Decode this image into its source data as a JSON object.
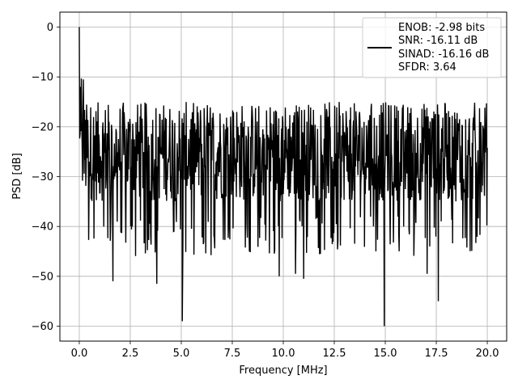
{
  "chart_data": {
    "type": "line",
    "title": "",
    "xlabel": "Frequency [MHz]",
    "ylabel": "PSD [dB]",
    "xlim": [
      -0.95,
      20.95
    ],
    "ylim": [
      -63,
      3
    ],
    "x_ticks": [
      0.0,
      2.5,
      5.0,
      7.5,
      10.0,
      12.5,
      15.0,
      17.5,
      20.0
    ],
    "x_tick_labels": [
      "0.0",
      "2.5",
      "5.0",
      "7.5",
      "10.0",
      "12.5",
      "15.0",
      "17.5",
      "20.0"
    ],
    "y_ticks": [
      0,
      -10,
      -20,
      -30,
      -40,
      -50,
      -60
    ],
    "y_tick_labels": [
      "0",
      "−10",
      "−20",
      "−30",
      "−40",
      "−50",
      "−60"
    ],
    "grid": true,
    "legend_position": "top-right",
    "series": [
      {
        "name": "ENOB: -2.98 bits\nSNR: -16.11 dB\nSINAD: -16.16 dB\nSFDR: 3.64",
        "color": "#000000",
        "x_range": [
          0.0,
          20.0
        ],
        "points": 1000,
        "noise_band_db": [
          -35,
          -15
        ],
        "peaks": [
          {
            "x": 0.0,
            "y": 0.0
          },
          {
            "x": 0.05,
            "y": -12.0
          },
          {
            "x": 0.1,
            "y": -10.3
          },
          {
            "x": 0.2,
            "y": -10.5
          }
        ],
        "dips": [
          {
            "x": 1.65,
            "y": -51.0
          },
          {
            "x": 3.8,
            "y": -51.5
          },
          {
            "x": 5.05,
            "y": -59.0
          },
          {
            "x": 9.8,
            "y": -50.0
          },
          {
            "x": 10.6,
            "y": -49.5
          },
          {
            "x": 11.0,
            "y": -50.5
          },
          {
            "x": 14.95,
            "y": -60.0
          },
          {
            "x": 17.05,
            "y": -49.5
          },
          {
            "x": 17.6,
            "y": -55.0
          }
        ]
      }
    ],
    "legend_lines": [
      "ENOB: -2.98 bits",
      "SNR: -16.11 dB",
      "SINAD: -16.16 dB",
      "SFDR: 3.64"
    ]
  }
}
